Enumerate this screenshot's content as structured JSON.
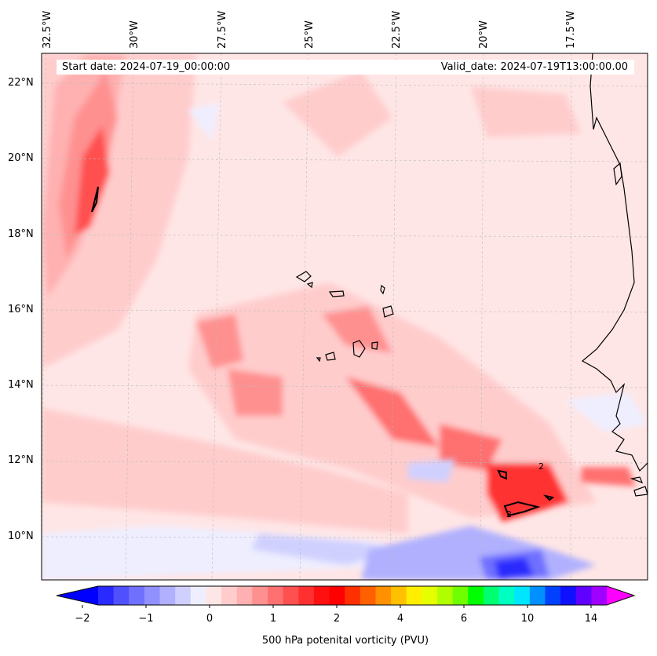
{
  "map": {
    "lon_labels": [
      "32.5°W",
      "30°W",
      "27.5°W",
      "25°W",
      "22.5°W",
      "20°W",
      "17.5°W"
    ],
    "lat_labels": [
      "22°N",
      "20°N",
      "18°N",
      "16°N",
      "14°N",
      "12°N",
      "10°N"
    ],
    "start_date": "Start date: 2024-07-19_00:00:00",
    "valid_date": "Valid_date: 2024-07-19T13:00:00.00",
    "contour_label": "2"
  },
  "colorbar": {
    "tick_labels": [
      "−2",
      "−1",
      "0",
      "1",
      "2",
      "4",
      "6",
      "10",
      "14"
    ],
    "title": "500 hPa potenital vorticity (PVU)",
    "colors": [
      "#0000ff",
      "#2a2aff",
      "#5050ff",
      "#7070ff",
      "#9090ff",
      "#b0b0ff",
      "#d0d0ff",
      "#eeeeff",
      "#ffe6e6",
      "#ffcccc",
      "#ffb0b0",
      "#ff9090",
      "#ff7070",
      "#ff5050",
      "#ff3030",
      "#ff1010",
      "#ff0000",
      "#ff3000",
      "#ff6000",
      "#ff9000",
      "#ffc000",
      "#ffee00",
      "#e6ff00",
      "#b0ff00",
      "#70ff00",
      "#00ff00",
      "#00ff70",
      "#00ffc0",
      "#00e6ff",
      "#0090ff",
      "#0040ff",
      "#1010ff",
      "#6000ff",
      "#a000ff",
      "#ff00ff"
    ]
  }
}
